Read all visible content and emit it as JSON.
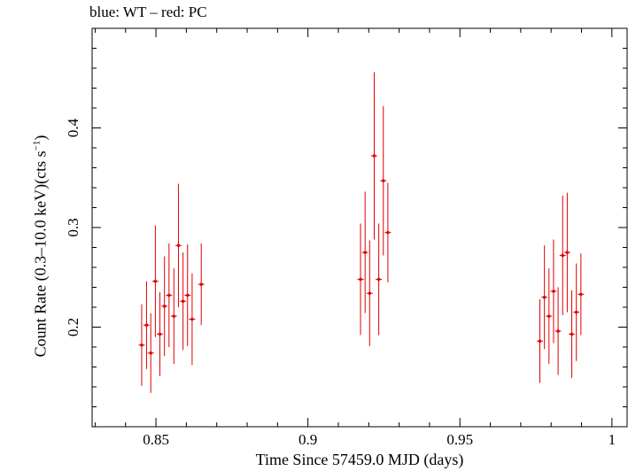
{
  "chart_data": {
    "type": "scatter",
    "title": "blue: WT – red: PC",
    "xlabel": "Time Since 57459.0 MJD (days)",
    "ylabel_main": "Count Rate (0.3–10.0 keV)(cts s",
    "ylabel_sup": "−1",
    "ylabel_end": ")",
    "xlim": [
      0.829,
      1.005
    ],
    "ylim": [
      0.1,
      0.5
    ],
    "x_ticks": [
      0.85,
      0.9,
      0.95,
      1
    ],
    "x_tick_labels": [
      "0.85",
      "0.9",
      "0.95",
      "1"
    ],
    "y_ticks": [
      0.2,
      0.3,
      0.4
    ],
    "y_tick_labels": [
      "0.2",
      "0.3",
      "0.4"
    ],
    "grid": false,
    "colors": {
      "PC": "#e00000",
      "WT": "#0000ff"
    },
    "series": [
      {
        "name": "PC",
        "color": "#e00000",
        "points": [
          {
            "x": 0.8453,
            "y": 0.182,
            "err": 0.041
          },
          {
            "x": 0.8469,
            "y": 0.202,
            "err": 0.044
          },
          {
            "x": 0.8483,
            "y": 0.174,
            "err": 0.04
          },
          {
            "x": 0.8498,
            "y": 0.246,
            "err": 0.056
          },
          {
            "x": 0.8513,
            "y": 0.193,
            "err": 0.042
          },
          {
            "x": 0.8528,
            "y": 0.221,
            "err": 0.05
          },
          {
            "x": 0.8543,
            "y": 0.232,
            "err": 0.052
          },
          {
            "x": 0.8559,
            "y": 0.211,
            "err": 0.048
          },
          {
            "x": 0.8574,
            "y": 0.282,
            "err": 0.062
          },
          {
            "x": 0.8589,
            "y": 0.226,
            "err": 0.049
          },
          {
            "x": 0.8604,
            "y": 0.232,
            "err": 0.051
          },
          {
            "x": 0.8619,
            "y": 0.208,
            "err": 0.046
          },
          {
            "x": 0.8649,
            "y": 0.243,
            "err": 0.041
          },
          {
            "x": 0.9173,
            "y": 0.248,
            "err": 0.056
          },
          {
            "x": 0.9188,
            "y": 0.275,
            "err": 0.061
          },
          {
            "x": 0.9203,
            "y": 0.234,
            "err": 0.053
          },
          {
            "x": 0.9218,
            "y": 0.372,
            "err": 0.084
          },
          {
            "x": 0.9233,
            "y": 0.248,
            "err": 0.056
          },
          {
            "x": 0.9248,
            "y": 0.347,
            "err": 0.075
          },
          {
            "x": 0.9263,
            "y": 0.295,
            "err": 0.05
          },
          {
            "x": 0.9763,
            "y": 0.186,
            "err": 0.042
          },
          {
            "x": 0.9778,
            "y": 0.23,
            "err": 0.052
          },
          {
            "x": 0.9793,
            "y": 0.211,
            "err": 0.048
          },
          {
            "x": 0.9808,
            "y": 0.236,
            "err": 0.052
          },
          {
            "x": 0.9823,
            "y": 0.196,
            "err": 0.044
          },
          {
            "x": 0.9838,
            "y": 0.272,
            "err": 0.06
          },
          {
            "x": 0.9853,
            "y": 0.275,
            "err": 0.06
          },
          {
            "x": 0.9868,
            "y": 0.193,
            "err": 0.044
          },
          {
            "x": 0.9883,
            "y": 0.215,
            "err": 0.049
          },
          {
            "x": 0.9898,
            "y": 0.233,
            "err": 0.041
          }
        ]
      }
    ]
  }
}
